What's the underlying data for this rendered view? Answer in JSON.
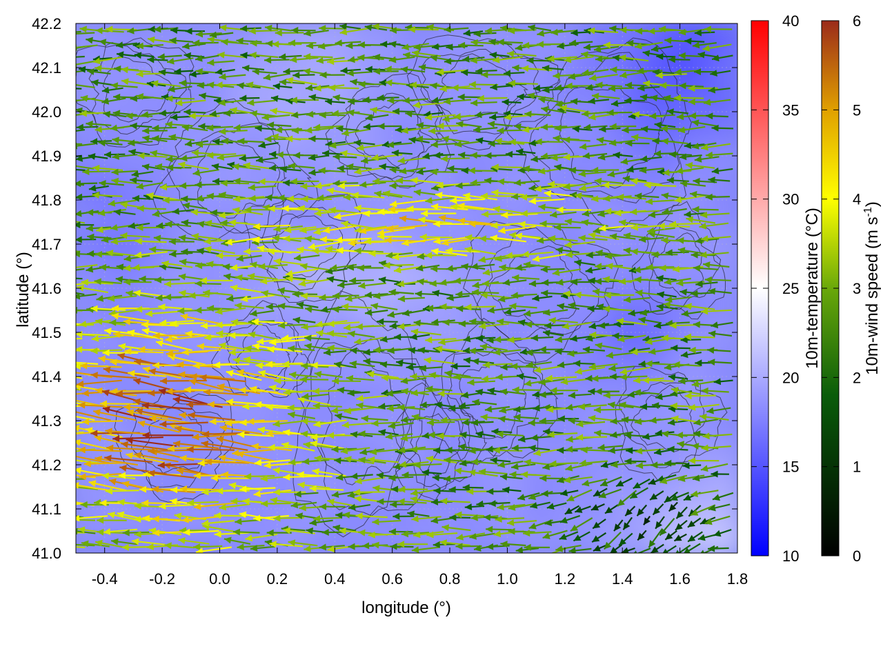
{
  "chart_data": {
    "type": "heatmap",
    "subtype": "temperature field with wind vectors and contour lines",
    "xlabel": "longitude (°)",
    "ylabel": "latitude (°)",
    "xlim": [
      -0.5,
      1.8
    ],
    "ylim": [
      41.0,
      42.2
    ],
    "xticks": [
      "-0.4",
      "-0.2",
      "0.0",
      "0.2",
      "0.4",
      "0.6",
      "0.8",
      "1.0",
      "1.2",
      "1.4",
      "1.6",
      "1.8"
    ],
    "xtick_values": [
      -0.4,
      -0.2,
      0.0,
      0.2,
      0.4,
      0.6,
      0.8,
      1.0,
      1.2,
      1.4,
      1.6,
      1.8
    ],
    "yticks": [
      "41.0",
      "41.1",
      "41.2",
      "41.3",
      "41.4",
      "41.5",
      "41.6",
      "41.7",
      "41.8",
      "41.9",
      "42.0",
      "42.1",
      "42.2"
    ],
    "ytick_values": [
      41.0,
      41.1,
      41.2,
      41.3,
      41.4,
      41.5,
      41.6,
      41.7,
      41.8,
      41.9,
      42.0,
      42.1,
      42.2
    ],
    "grid": true,
    "temperature_colorbar": {
      "label": "10m-temperature (°C)",
      "range": [
        10,
        40
      ],
      "ticks": [
        "10",
        "15",
        "20",
        "25",
        "30",
        "35",
        "40"
      ],
      "tick_values": [
        10,
        15,
        20,
        25,
        30,
        35,
        40
      ],
      "colors": [
        "#0000ff",
        "#ffffff",
        "#ff0000"
      ],
      "color_stops": [
        10,
        25,
        40
      ]
    },
    "wind_colorbar": {
      "label": "10m-wind speed (m s",
      "label_sup": "-1",
      "label_end": ")",
      "range": [
        0,
        6
      ],
      "ticks": [
        "0",
        "1",
        "2",
        "3",
        "4",
        "5",
        "6"
      ],
      "tick_values": [
        0,
        1,
        2,
        3,
        4,
        5,
        6
      ],
      "colors": [
        "#000000",
        "#0a5c0a",
        "#6aa80a",
        "#ffff00",
        "#e0a000",
        "#9b2b1a"
      ],
      "color_stops": [
        0,
        1.8,
        3,
        4,
        5,
        6
      ]
    },
    "temperature_field_summary": {
      "typical_range": [
        15,
        22
      ],
      "cooler_regions": [
        "northeast (lon 1.4–1.8, lat 41.8–42.2)",
        "east (lon 1.4–1.6, lat 41.5)"
      ],
      "warmer_regions": [
        "southeast corner (lon 1.5–1.8, lat 41.0–41.2)",
        "central band (lon 0.2–0.8, lat 41.5–41.7)"
      ]
    },
    "wind_field_summary": {
      "dominant_direction": "westward (easterly flow)",
      "strongest_winds": "southwest (lon -0.5–0.5, lat 41.0–41.6), 5–6 m s-1",
      "weakest_winds": "southeast corner (lon 1.1–1.8, lat 41.0–41.2), ~1–2 m s-1, pointing southwest",
      "moderate_band": "lon 0.2–1.4, lat 41.6–41.9, 4–5 m s-1"
    }
  }
}
